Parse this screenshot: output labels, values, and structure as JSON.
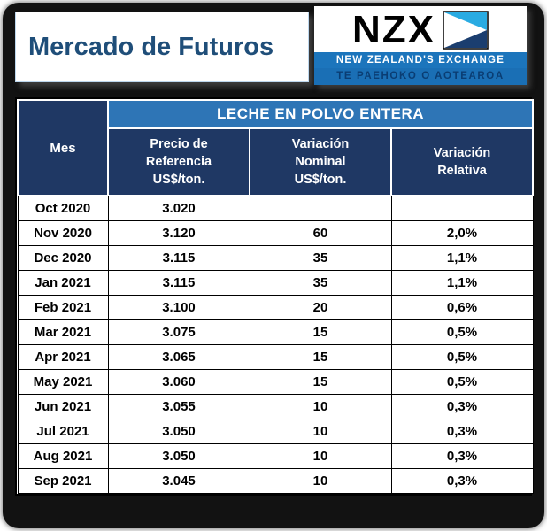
{
  "title": "Mercado de Futuros",
  "logo": {
    "text": "NZX",
    "line1": "NEW ZEALAND'S EXCHANGE",
    "line2": "TE PAEHOKO O AOTEAROA"
  },
  "table": {
    "banner": "LECHE EN POLVO ENTERA",
    "headers": {
      "mes": "Mes",
      "precio": "Precio de\nReferencia\nUS$/ton.",
      "nominal": "Variación\nNominal\nUS$/ton.",
      "relativa": "Variación\nRelativa"
    }
  },
  "colors": {
    "header_navy": "#1F3864",
    "banner_blue": "#2E75B6",
    "title_blue": "#1F4E79",
    "logo_cyan": "#29ABE2",
    "logo_navy": "#1B3E6F",
    "logo_bar_blue": "#1C75BC"
  },
  "chart_data": {
    "type": "table",
    "title": "LECHE EN POLVO ENTERA",
    "columns": [
      "Mes",
      "Precio de Referencia US$/ton.",
      "Variación Nominal US$/ton.",
      "Variación Relativa"
    ],
    "rows": [
      [
        "Oct 2020",
        "3.020",
        "",
        ""
      ],
      [
        "Nov 2020",
        "3.120",
        "60",
        "2,0%"
      ],
      [
        "Dec 2020",
        "3.115",
        "35",
        "1,1%"
      ],
      [
        "Jan 2021",
        "3.115",
        "35",
        "1,1%"
      ],
      [
        "Feb 2021",
        "3.100",
        "20",
        "0,6%"
      ],
      [
        "Mar 2021",
        "3.075",
        "15",
        "0,5%"
      ],
      [
        "Apr 2021",
        "3.065",
        "15",
        "0,5%"
      ],
      [
        "May 2021",
        "3.060",
        "15",
        "0,5%"
      ],
      [
        "Jun 2021",
        "3.055",
        "10",
        "0,3%"
      ],
      [
        "Jul 2021",
        "3.050",
        "10",
        "0,3%"
      ],
      [
        "Aug 2021",
        "3.050",
        "10",
        "0,3%"
      ],
      [
        "Sep 2021",
        "3.045",
        "10",
        "0,3%"
      ]
    ]
  }
}
